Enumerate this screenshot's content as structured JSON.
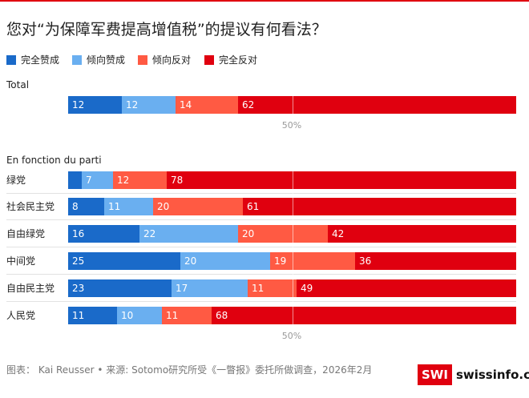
{
  "title": "您对“为保障军费提高增值税”的提议有何看法？",
  "legend": [
    {
      "label": "完全赞成",
      "color": "#1a6ac9"
    },
    {
      "label": "倾向赞成",
      "color": "#6aaff0"
    },
    {
      "label": "倾向反对",
      "color": "#ff5a43"
    },
    {
      "label": "完全反对",
      "color": "#e0000f"
    }
  ],
  "chart_data": {
    "type": "bar",
    "orientation": "horizontal",
    "stacked": true,
    "xlim": [
      0,
      100
    ],
    "midline_value": 50,
    "midline_label": "50%",
    "series_names": [
      "完全赞成",
      "倾向赞成",
      "倾向反对",
      "完全反对"
    ],
    "groups": [
      {
        "label": "Total",
        "rows": [
          {
            "category": "",
            "values": [
              12,
              12,
              14,
              62
            ]
          }
        ]
      },
      {
        "label": "En fonction du parti",
        "rows": [
          {
            "category": "绿党",
            "values": [
              3,
              7,
              12,
              78
            ]
          },
          {
            "category": "社会民主党",
            "values": [
              8,
              11,
              20,
              61
            ]
          },
          {
            "category": "自由绿党",
            "values": [
              16,
              22,
              20,
              42
            ]
          },
          {
            "category": "中间党",
            "values": [
              25,
              20,
              19,
              36
            ]
          },
          {
            "category": "自由民主党",
            "values": [
              23,
              17,
              11,
              49
            ]
          },
          {
            "category": "人民党",
            "values": [
              11,
              10,
              11,
              68
            ]
          }
        ]
      }
    ]
  },
  "footer": "图表： Kai Reusser • 来源: Sotomo研究所受《一瞥报》委托所做调查，2026年2月",
  "brand": {
    "box": "SWI",
    "text": "swissinfo.ch"
  }
}
